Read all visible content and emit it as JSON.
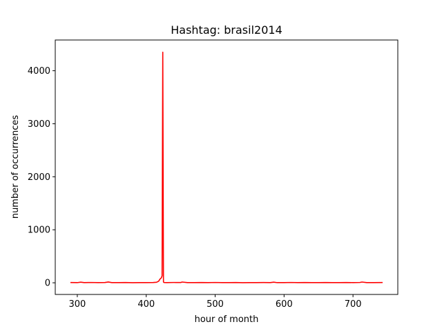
{
  "chart_data": {
    "type": "line",
    "title": "Hashtag: brasil2014",
    "xlabel": "hour of month",
    "ylabel": "number of occurrences",
    "xlim": [
      268,
      765
    ],
    "ylim": [
      -220,
      4580
    ],
    "xticks": [
      300,
      400,
      500,
      600,
      700
    ],
    "yticks": [
      0,
      1000,
      2000,
      3000,
      4000
    ],
    "grid": false,
    "legend": "none",
    "series": [
      {
        "color": "#ff0000",
        "x": [
          290,
          300,
          305,
          310,
          320,
          330,
          340,
          345,
          350,
          360,
          370,
          380,
          390,
          400,
          410,
          415,
          418,
          420,
          422,
          423,
          424,
          425,
          426,
          430,
          440,
          450,
          452,
          460,
          470,
          480,
          490,
          500,
          510,
          520,
          530,
          540,
          550,
          560,
          570,
          580,
          585,
          590,
          600,
          610,
          620,
          630,
          640,
          650,
          660,
          670,
          680,
          690,
          700,
          710,
          713,
          720,
          730,
          743
        ],
        "y": [
          5,
          3,
          12,
          4,
          6,
          3,
          5,
          15,
          4,
          3,
          5,
          2,
          4,
          3,
          5,
          10,
          30,
          70,
          95,
          130,
          4350,
          15,
          5,
          4,
          6,
          5,
          14,
          4,
          3,
          5,
          4,
          6,
          3,
          4,
          5,
          2,
          4,
          3,
          5,
          4,
          12,
          3,
          4,
          6,
          3,
          5,
          4,
          3,
          5,
          4,
          3,
          5,
          4,
          6,
          14,
          4,
          3,
          5
        ]
      }
    ]
  }
}
